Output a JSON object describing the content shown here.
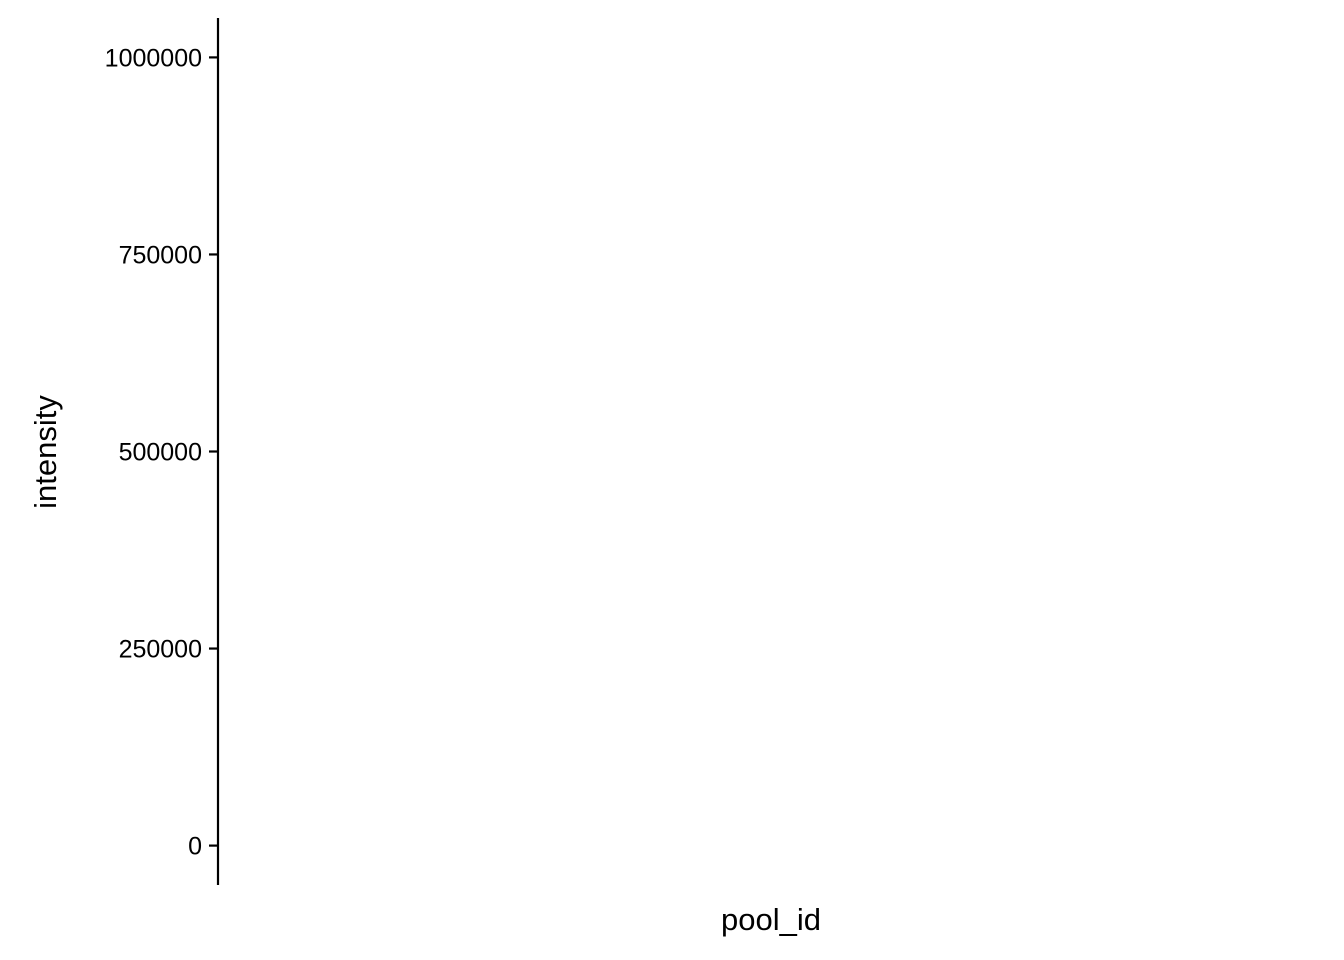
{
  "chart_data": {
    "type": "scatter",
    "title": "",
    "xlabel": "pool_id",
    "ylabel": "intensity",
    "ylim": [
      -50000,
      1050000
    ],
    "yticks": [
      {
        "value": 0,
        "label": "0"
      },
      {
        "value": 250000,
        "label": "250000"
      },
      {
        "value": 500000,
        "label": "500000"
      },
      {
        "value": 750000,
        "label": "750000"
      },
      {
        "value": 1000000,
        "label": "1000000"
      }
    ],
    "categories": [],
    "series": [],
    "grid": false,
    "legend": "none",
    "colors": {
      "axis": "#000000",
      "background": "#ffffff"
    }
  }
}
